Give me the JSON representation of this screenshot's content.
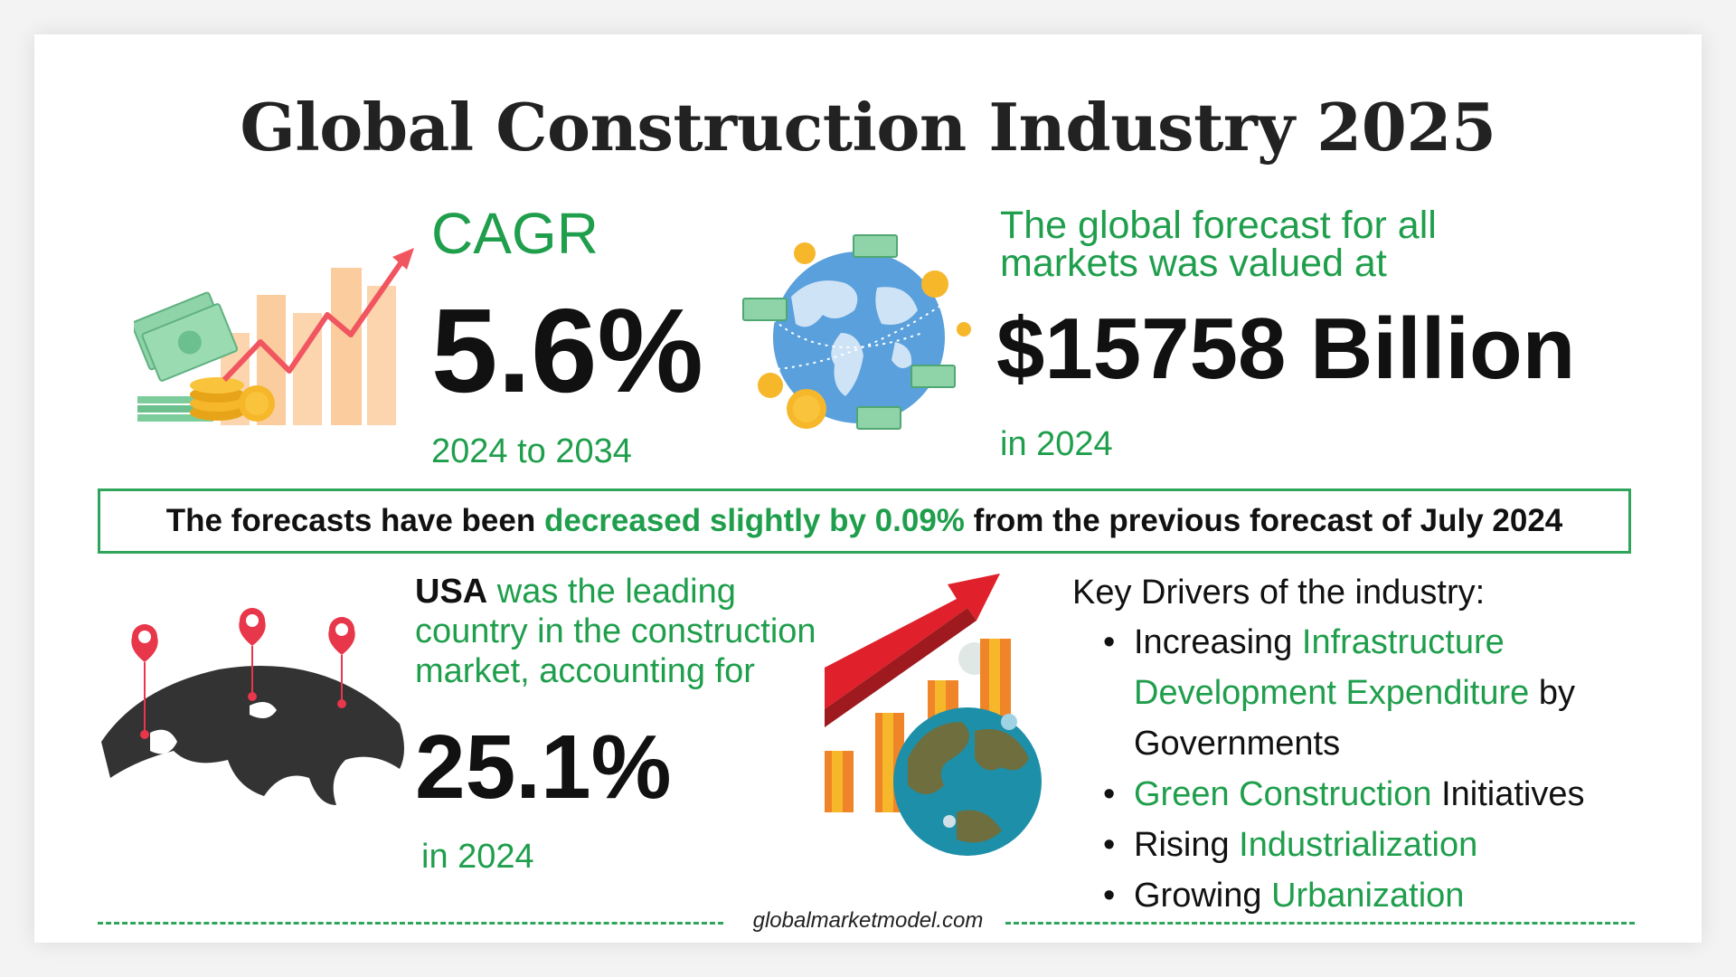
{
  "title": "Global Construction Industry 2025",
  "cagr": {
    "label": "CAGR",
    "value": "5.6%",
    "period": "2024 to 2034"
  },
  "forecast": {
    "text": "The global forecast for all markets was valued at",
    "value": "$15758 Billion",
    "year": "in 2024"
  },
  "banner": {
    "prefix": "The forecasts have been",
    "highlight": "decreased slightly by 0.09%",
    "suffix": "from the previous forecast of July 2024"
  },
  "usa": {
    "name": "USA",
    "text": "was the leading country in the construction market, accounting for",
    "value": "25.1%",
    "year": "in 2024"
  },
  "key_drivers": {
    "heading": "Key Drivers of the industry:",
    "items": [
      {
        "pre": "Increasing",
        "highlight": "Infrastructure Development Expenditure",
        "post": "by Governments"
      },
      {
        "pre": "",
        "highlight": "Green Construction",
        "post": "Initiatives"
      },
      {
        "pre": "Rising",
        "highlight": "Industrialization",
        "post": ""
      },
      {
        "pre": "Growing",
        "highlight": "Urbanization",
        "post": ""
      }
    ]
  },
  "footer": "globalmarketmodel.com",
  "colors": {
    "accent_green": "#1f9e4c",
    "border_green": "#2ea55a",
    "text_dark": "#111111",
    "arrow_red": "#e0202a"
  },
  "icons": [
    "money-growth-chart-icon",
    "globe-money-icon",
    "world-map-pins-icon",
    "globe-growth-chart-icon"
  ]
}
